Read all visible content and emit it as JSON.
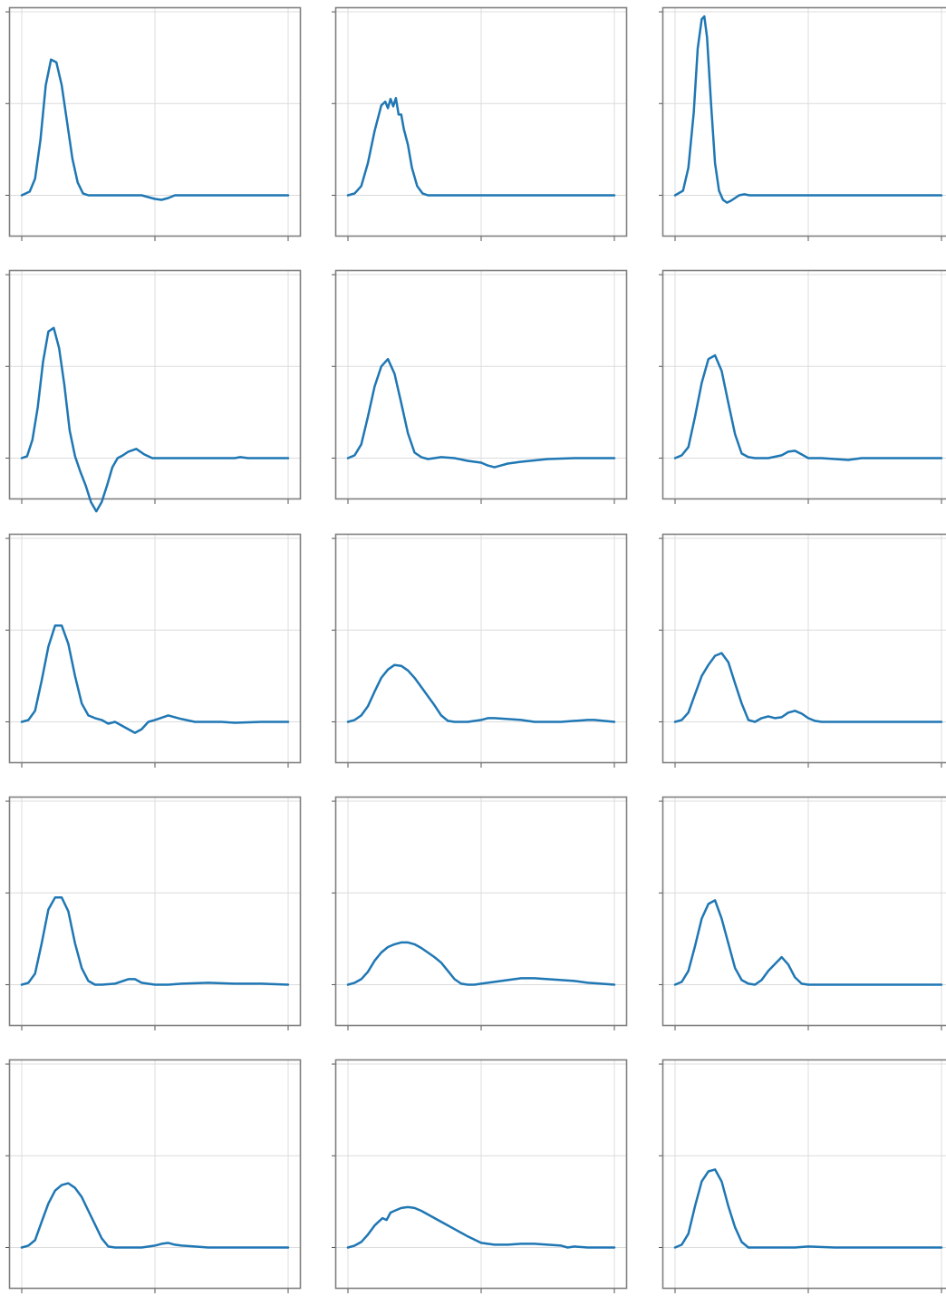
{
  "chart_data": [
    {
      "type": "line",
      "xlim": [
        0,
        2
      ],
      "ylim": [
        -0.45,
        2.05
      ],
      "grid": true,
      "series": [
        {
          "color": "#1f77b4",
          "x": [
            0,
            0.06,
            0.1,
            0.14,
            0.18,
            0.22,
            0.26,
            0.3,
            0.34,
            0.38,
            0.42,
            0.46,
            0.5,
            0.55,
            0.6,
            0.7,
            0.8,
            0.9,
            1.0,
            1.05,
            1.1,
            1.15,
            1.2,
            1.3,
            1.5,
            1.7,
            2.0
          ],
          "y": [
            0,
            0.04,
            0.18,
            0.6,
            1.2,
            1.48,
            1.45,
            1.2,
            0.8,
            0.4,
            0.14,
            0.02,
            0,
            0,
            0,
            0,
            0,
            0,
            -0.04,
            -0.05,
            -0.03,
            0,
            0,
            0,
            0,
            0,
            0
          ]
        }
      ]
    },
    {
      "type": "line",
      "xlim": [
        0,
        2
      ],
      "ylim": [
        -0.45,
        2.05
      ],
      "grid": true,
      "series": [
        {
          "color": "#1f77b4",
          "x": [
            0,
            0.05,
            0.1,
            0.15,
            0.2,
            0.25,
            0.28,
            0.3,
            0.32,
            0.34,
            0.36,
            0.38,
            0.4,
            0.42,
            0.45,
            0.48,
            0.52,
            0.56,
            0.6,
            0.65,
            0.7,
            0.8,
            1.0,
            1.3,
            1.6,
            2.0
          ],
          "y": [
            0,
            0.02,
            0.1,
            0.35,
            0.7,
            0.98,
            1.02,
            0.95,
            1.05,
            0.97,
            1.06,
            0.88,
            0.88,
            0.72,
            0.55,
            0.3,
            0.1,
            0.02,
            0,
            0,
            0,
            0,
            0,
            0,
            0,
            0
          ]
        }
      ]
    },
    {
      "type": "line",
      "xlim": [
        0,
        2
      ],
      "ylim": [
        -0.45,
        2.05
      ],
      "grid": true,
      "series": [
        {
          "color": "#1f77b4",
          "x": [
            0,
            0.06,
            0.1,
            0.14,
            0.17,
            0.2,
            0.22,
            0.24,
            0.27,
            0.3,
            0.33,
            0.36,
            0.39,
            0.42,
            0.45,
            0.48,
            0.52,
            0.56,
            0.6,
            0.65,
            0.7,
            0.8,
            1.0,
            1.4,
            2.0
          ],
          "y": [
            0,
            0.05,
            0.3,
            0.9,
            1.6,
            1.92,
            1.95,
            1.72,
            1.0,
            0.35,
            0.05,
            -0.05,
            -0.08,
            -0.06,
            -0.03,
            0,
            0.01,
            0,
            0,
            0,
            0,
            0,
            0,
            0,
            0
          ]
        }
      ]
    },
    {
      "type": "line",
      "xlim": [
        0,
        2
      ],
      "ylim": [
        -0.45,
        2.05
      ],
      "grid": true,
      "series": [
        {
          "color": "#1f77b4",
          "x": [
            0,
            0.04,
            0.08,
            0.12,
            0.16,
            0.2,
            0.24,
            0.28,
            0.32,
            0.36,
            0.4,
            0.44,
            0.48,
            0.52,
            0.56,
            0.6,
            0.64,
            0.68,
            0.72,
            0.76,
            0.8,
            0.86,
            0.92,
            0.98,
            1.04,
            1.1,
            1.2,
            1.4,
            1.6,
            1.64,
            1.7,
            1.8,
            2.0
          ],
          "y": [
            0,
            0.02,
            0.2,
            0.55,
            1.05,
            1.38,
            1.42,
            1.2,
            0.8,
            0.3,
            0.02,
            -0.15,
            -0.3,
            -0.48,
            -0.58,
            -0.48,
            -0.3,
            -0.1,
            0.0,
            0.03,
            0.07,
            0.1,
            0.04,
            0,
            0,
            0,
            0,
            0,
            0,
            0.01,
            0,
            0,
            0
          ]
        }
      ]
    },
    {
      "type": "line",
      "xlim": [
        0,
        2
      ],
      "ylim": [
        -0.45,
        2.05
      ],
      "grid": true,
      "series": [
        {
          "color": "#1f77b4",
          "x": [
            0,
            0.05,
            0.1,
            0.15,
            0.2,
            0.25,
            0.3,
            0.35,
            0.4,
            0.45,
            0.5,
            0.55,
            0.6,
            0.65,
            0.7,
            0.8,
            0.9,
            1.0,
            1.05,
            1.1,
            1.15,
            1.2,
            1.3,
            1.5,
            1.7,
            2.0
          ],
          "y": [
            0,
            0.03,
            0.15,
            0.45,
            0.78,
            1.0,
            1.08,
            0.92,
            0.6,
            0.27,
            0.06,
            0.01,
            -0.01,
            0,
            0.01,
            0,
            -0.03,
            -0.05,
            -0.08,
            -0.1,
            -0.08,
            -0.06,
            -0.04,
            -0.01,
            0,
            0
          ]
        }
      ]
    },
    {
      "type": "line",
      "xlim": [
        0,
        2
      ],
      "ylim": [
        -0.45,
        2.05
      ],
      "grid": true,
      "series": [
        {
          "color": "#1f77b4",
          "x": [
            0,
            0.05,
            0.1,
            0.15,
            0.2,
            0.25,
            0.3,
            0.35,
            0.4,
            0.45,
            0.5,
            0.55,
            0.6,
            0.7,
            0.8,
            0.85,
            0.9,
            0.95,
            1.0,
            1.1,
            1.2,
            1.3,
            1.4,
            1.6,
            2.0
          ],
          "y": [
            0,
            0.03,
            0.12,
            0.45,
            0.82,
            1.08,
            1.12,
            0.95,
            0.6,
            0.26,
            0.05,
            0.01,
            0,
            0,
            0.03,
            0.07,
            0.08,
            0.04,
            0,
            0,
            -0.01,
            -0.02,
            0,
            0,
            0
          ]
        }
      ]
    },
    {
      "type": "line",
      "xlim": [
        0,
        2
      ],
      "ylim": [
        -0.45,
        2.05
      ],
      "grid": true,
      "series": [
        {
          "color": "#1f77b4",
          "x": [
            0,
            0.05,
            0.1,
            0.15,
            0.2,
            0.25,
            0.3,
            0.35,
            0.4,
            0.45,
            0.5,
            0.55,
            0.6,
            0.65,
            0.7,
            0.8,
            0.85,
            0.9,
            0.95,
            1.0,
            1.1,
            1.2,
            1.3,
            1.4,
            1.5,
            1.6,
            1.8,
            2.0
          ],
          "y": [
            0,
            0.02,
            0.12,
            0.45,
            0.82,
            1.05,
            1.05,
            0.85,
            0.5,
            0.2,
            0.07,
            0.04,
            0.02,
            -0.02,
            0,
            -0.08,
            -0.12,
            -0.08,
            0,
            0.02,
            0.07,
            0.03,
            0,
            0,
            0,
            -0.01,
            0,
            0
          ]
        }
      ]
    },
    {
      "type": "line",
      "xlim": [
        0,
        2
      ],
      "ylim": [
        -0.45,
        2.05
      ],
      "grid": true,
      "series": [
        {
          "color": "#1f77b4",
          "x": [
            0,
            0.05,
            0.1,
            0.15,
            0.2,
            0.25,
            0.3,
            0.35,
            0.4,
            0.45,
            0.5,
            0.55,
            0.6,
            0.65,
            0.7,
            0.75,
            0.8,
            0.85,
            0.9,
            1.0,
            1.05,
            1.1,
            1.2,
            1.3,
            1.4,
            1.5,
            1.6,
            1.7,
            1.8,
            1.85,
            2.0
          ],
          "y": [
            0,
            0.02,
            0.07,
            0.17,
            0.33,
            0.48,
            0.57,
            0.62,
            0.61,
            0.56,
            0.48,
            0.38,
            0.28,
            0.18,
            0.07,
            0.01,
            0,
            0,
            0,
            0.02,
            0.04,
            0.04,
            0.03,
            0.02,
            0,
            0,
            0,
            0.01,
            0.02,
            0.02,
            0
          ]
        }
      ]
    },
    {
      "type": "line",
      "xlim": [
        0,
        2
      ],
      "ylim": [
        -0.45,
        2.05
      ],
      "grid": true,
      "series": [
        {
          "color": "#1f77b4",
          "x": [
            0,
            0.05,
            0.1,
            0.15,
            0.2,
            0.25,
            0.3,
            0.35,
            0.4,
            0.45,
            0.5,
            0.55,
            0.6,
            0.65,
            0.7,
            0.75,
            0.8,
            0.85,
            0.9,
            0.95,
            1.0,
            1.05,
            1.1,
            1.2,
            1.3,
            1.4,
            1.6,
            2.0
          ],
          "y": [
            0,
            0.02,
            0.1,
            0.3,
            0.5,
            0.62,
            0.72,
            0.75,
            0.65,
            0.42,
            0.2,
            0.02,
            0,
            0.04,
            0.06,
            0.04,
            0.05,
            0.1,
            0.12,
            0.09,
            0.04,
            0.01,
            0,
            0,
            0,
            0,
            0,
            0
          ]
        }
      ]
    },
    {
      "type": "line",
      "xlim": [
        0,
        2
      ],
      "ylim": [
        -0.45,
        2.05
      ],
      "grid": true,
      "series": [
        {
          "color": "#1f77b4",
          "x": [
            0,
            0.05,
            0.1,
            0.15,
            0.2,
            0.25,
            0.3,
            0.35,
            0.4,
            0.45,
            0.5,
            0.55,
            0.6,
            0.7,
            0.8,
            0.85,
            0.9,
            1.0,
            1.1,
            1.2,
            1.4,
            1.6,
            1.8,
            2.0
          ],
          "y": [
            0,
            0.02,
            0.12,
            0.45,
            0.82,
            0.95,
            0.95,
            0.8,
            0.45,
            0.18,
            0.04,
            0,
            0,
            0.01,
            0.06,
            0.06,
            0.02,
            0,
            0,
            0.01,
            0.02,
            0.01,
            0.01,
            0
          ]
        }
      ]
    },
    {
      "type": "line",
      "xlim": [
        0,
        2
      ],
      "ylim": [
        -0.45,
        2.05
      ],
      "grid": true,
      "series": [
        {
          "color": "#1f77b4",
          "x": [
            0,
            0.05,
            0.1,
            0.15,
            0.2,
            0.25,
            0.3,
            0.35,
            0.4,
            0.45,
            0.5,
            0.55,
            0.6,
            0.65,
            0.7,
            0.75,
            0.8,
            0.85,
            0.9,
            0.95,
            1.0,
            1.1,
            1.2,
            1.3,
            1.4,
            1.5,
            1.6,
            1.7,
            1.8,
            1.9,
            2.0
          ],
          "y": [
            0,
            0.02,
            0.06,
            0.14,
            0.26,
            0.35,
            0.41,
            0.44,
            0.46,
            0.46,
            0.44,
            0.4,
            0.35,
            0.3,
            0.24,
            0.15,
            0.06,
            0.01,
            0,
            0,
            0.01,
            0.03,
            0.05,
            0.07,
            0.07,
            0.06,
            0.05,
            0.04,
            0.02,
            0.01,
            0
          ]
        }
      ]
    },
    {
      "type": "line",
      "xlim": [
        0,
        2
      ],
      "ylim": [
        -0.45,
        2.05
      ],
      "grid": true,
      "series": [
        {
          "color": "#1f77b4",
          "x": [
            0,
            0.05,
            0.1,
            0.15,
            0.2,
            0.25,
            0.3,
            0.35,
            0.4,
            0.45,
            0.5,
            0.55,
            0.6,
            0.65,
            0.7,
            0.8,
            0.85,
            0.9,
            0.95,
            1.0,
            1.1,
            1.2,
            1.4,
            1.6,
            1.8,
            2.0
          ],
          "y": [
            0,
            0.03,
            0.15,
            0.42,
            0.72,
            0.88,
            0.92,
            0.72,
            0.45,
            0.18,
            0.05,
            0.01,
            0,
            0.05,
            0.15,
            0.3,
            0.22,
            0.08,
            0.01,
            0,
            0,
            0,
            0,
            0,
            0,
            0
          ]
        }
      ]
    },
    {
      "type": "line",
      "xlim": [
        0,
        2
      ],
      "ylim": [
        -0.45,
        2.05
      ],
      "grid": true,
      "series": [
        {
          "color": "#1f77b4",
          "x": [
            0,
            0.05,
            0.1,
            0.15,
            0.2,
            0.25,
            0.3,
            0.35,
            0.4,
            0.45,
            0.5,
            0.55,
            0.6,
            0.65,
            0.7,
            0.75,
            0.8,
            0.9,
            1.0,
            1.05,
            1.1,
            1.15,
            1.2,
            1.3,
            1.4,
            1.6,
            1.8,
            2.0
          ],
          "y": [
            0,
            0.02,
            0.08,
            0.28,
            0.48,
            0.62,
            0.68,
            0.7,
            0.65,
            0.55,
            0.4,
            0.25,
            0.1,
            0.01,
            0,
            0,
            0,
            0,
            0.02,
            0.04,
            0.05,
            0.03,
            0.02,
            0.01,
            0,
            0,
            0,
            0
          ]
        }
      ]
    },
    {
      "type": "line",
      "xlim": [
        0,
        2
      ],
      "ylim": [
        -0.45,
        2.05
      ],
      "grid": true,
      "series": [
        {
          "color": "#1f77b4",
          "x": [
            0,
            0.05,
            0.1,
            0.15,
            0.2,
            0.23,
            0.26,
            0.29,
            0.32,
            0.35,
            0.4,
            0.45,
            0.5,
            0.55,
            0.6,
            0.7,
            0.8,
            0.9,
            1.0,
            1.1,
            1.2,
            1.3,
            1.4,
            1.5,
            1.6,
            1.65,
            1.7,
            1.8,
            1.9,
            2.0
          ],
          "y": [
            0,
            0.02,
            0.06,
            0.14,
            0.24,
            0.28,
            0.32,
            0.3,
            0.38,
            0.4,
            0.43,
            0.44,
            0.43,
            0.4,
            0.36,
            0.28,
            0.2,
            0.12,
            0.05,
            0.03,
            0.03,
            0.04,
            0.04,
            0.03,
            0.02,
            0,
            0.01,
            0,
            0,
            0
          ]
        }
      ]
    },
    {
      "type": "line",
      "xlim": [
        0,
        2
      ],
      "ylim": [
        -0.45,
        2.05
      ],
      "grid": true,
      "series": [
        {
          "color": "#1f77b4",
          "x": [
            0,
            0.05,
            0.1,
            0.15,
            0.2,
            0.25,
            0.3,
            0.35,
            0.4,
            0.45,
            0.5,
            0.55,
            0.6,
            0.65,
            0.7,
            0.8,
            0.9,
            1.0,
            1.2,
            1.4,
            1.6,
            1.8,
            2.0
          ],
          "y": [
            0,
            0.03,
            0.15,
            0.45,
            0.72,
            0.83,
            0.85,
            0.72,
            0.45,
            0.22,
            0.06,
            0,
            0,
            0,
            0,
            0,
            0,
            0.01,
            0,
            0,
            0,
            0,
            0
          ]
        }
      ]
    }
  ]
}
